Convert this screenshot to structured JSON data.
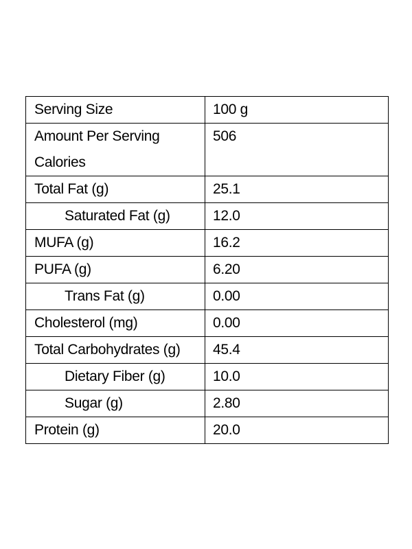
{
  "nutrition_table": {
    "rows": [
      {
        "label": "Serving Size",
        "value": "100 g",
        "indented": false
      },
      {
        "label": "Amount Per Serving Calories",
        "label_lines": [
          "Amount Per Serving",
          "Calories"
        ],
        "value": "506",
        "indented": false
      },
      {
        "label": "Total Fat (g)",
        "value": "25.1",
        "indented": false
      },
      {
        "label": "Saturated Fat (g)",
        "value": "12.0",
        "indented": true
      },
      {
        "label": "MUFA (g)",
        "value": "16.2",
        "indented": false
      },
      {
        "label": "PUFA (g)",
        "value": "6.20",
        "indented": false
      },
      {
        "label": "Trans Fat (g)",
        "value": "0.00",
        "indented": true
      },
      {
        "label": "Cholesterol (mg)",
        "value": "0.00",
        "indented": false
      },
      {
        "label": "Total Carbohydrates (g)",
        "value": "45.4",
        "indented": false
      },
      {
        "label": "Dietary Fiber (g)",
        "value": "10.0",
        "indented": true
      },
      {
        "label": "Sugar (g)",
        "value": "2.80",
        "indented": true
      },
      {
        "label": "Protein (g)",
        "value": "20.0",
        "indented": false
      }
    ]
  }
}
